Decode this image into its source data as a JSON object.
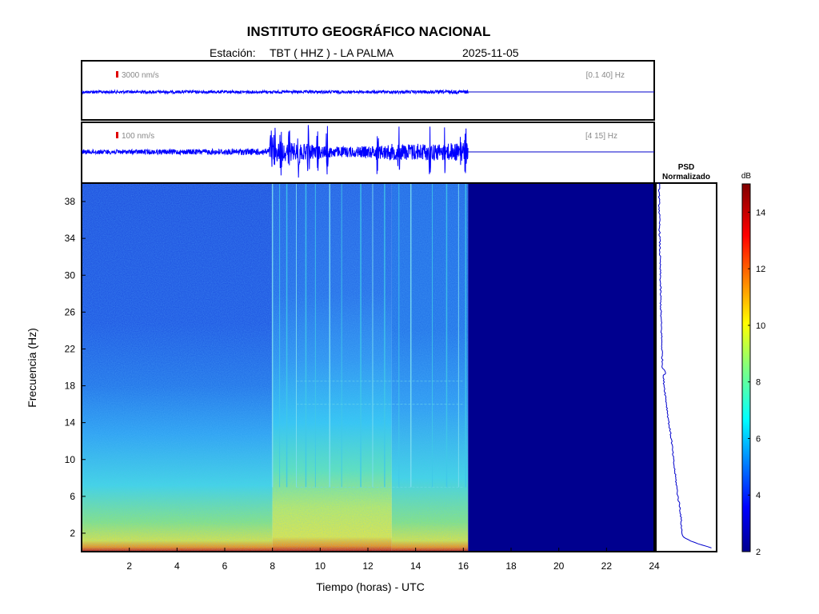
{
  "header": {
    "title": "INSTITUTO GEOGRÁFICO NACIONAL",
    "station_prefix": "Estación:",
    "station": "TBT ( HHZ ) - LA PALMA",
    "date": "2025-11-05"
  },
  "chart_data": [
    {
      "type": "line",
      "panel": "seismogram-broadband",
      "scale_label": "3000 nm/s",
      "band_label": "[0.1 40] Hz",
      "x_range": [
        0,
        24
      ],
      "data_end_hour": 16.2,
      "amplitude_profile": {
        "hours": [
          0,
          4,
          8,
          12,
          16.2
        ],
        "relative_amplitude": [
          0.05,
          0.05,
          0.05,
          0.05,
          0.06
        ]
      },
      "color": "#0000ff"
    },
    {
      "type": "line",
      "panel": "seismogram-filtered",
      "scale_label": "100 nm/s",
      "band_label": "[4 15] Hz",
      "x_range": [
        0,
        24
      ],
      "data_end_hour": 16.2,
      "amplitude_profile": {
        "hours": [
          0,
          2,
          4,
          6,
          7.8,
          8,
          9,
          10,
          11,
          12,
          13,
          14,
          15,
          16,
          16.2
        ],
        "relative_amplitude": [
          0.08,
          0.08,
          0.09,
          0.1,
          0.12,
          0.35,
          0.3,
          0.22,
          0.18,
          0.2,
          0.28,
          0.3,
          0.3,
          0.32,
          0.3
        ]
      },
      "bursts_hours": [
        7.95,
        8.1,
        8.35,
        8.7,
        9.1,
        9.5,
        9.9,
        10.3,
        12.4,
        13.3,
        14.6,
        15.2,
        15.9,
        16.1
      ],
      "color": "#0000ff"
    },
    {
      "type": "heatmap",
      "panel": "spectrogram",
      "xlabel": "Tiempo (horas) - UTC",
      "ylabel": "Frecuencia  (Hz)",
      "x_ticks": [
        2,
        4,
        6,
        8,
        10,
        12,
        14,
        16,
        18,
        20,
        22,
        24
      ],
      "y_ticks": [
        2,
        6,
        10,
        14,
        18,
        22,
        26,
        30,
        34,
        38
      ],
      "x_range": [
        0,
        24
      ],
      "y_range": [
        0,
        40
      ],
      "data_end_hour": 16.2,
      "vertical_line_hours": [
        8.0,
        8.3,
        8.6,
        9.0,
        9.4,
        9.8,
        10.4,
        10.9,
        11.7,
        12.2,
        12.7,
        13.3,
        13.8,
        14.7,
        15.3,
        15.8,
        16.1
      ],
      "horizontal_line_hz": [
        18.5,
        16.0,
        7.0
      ],
      "colorbar": {
        "label": "dB",
        "ticks": [
          2,
          4,
          6,
          8,
          10,
          12,
          14
        ],
        "range": [
          2,
          15
        ]
      }
    },
    {
      "type": "line",
      "panel": "psd",
      "title": "PSD",
      "subtitle": "Normalizado",
      "y_range": [
        0,
        40
      ],
      "psd_hz": [
        0.3,
        1,
        1.5,
        2,
        3,
        4,
        5,
        6,
        8,
        10,
        12,
        14,
        16,
        18,
        19,
        19.5,
        20,
        22,
        26,
        30,
        34,
        38,
        40
      ],
      "psd_value": [
        1.0,
        0.65,
        0.47,
        0.43,
        0.42,
        0.41,
        0.39,
        0.36,
        0.32,
        0.28,
        0.25,
        0.2,
        0.16,
        0.12,
        0.1,
        0.15,
        0.09,
        0.08,
        0.06,
        0.05,
        0.04,
        0.03,
        0.03
      ],
      "color": "#0000cc"
    }
  ]
}
